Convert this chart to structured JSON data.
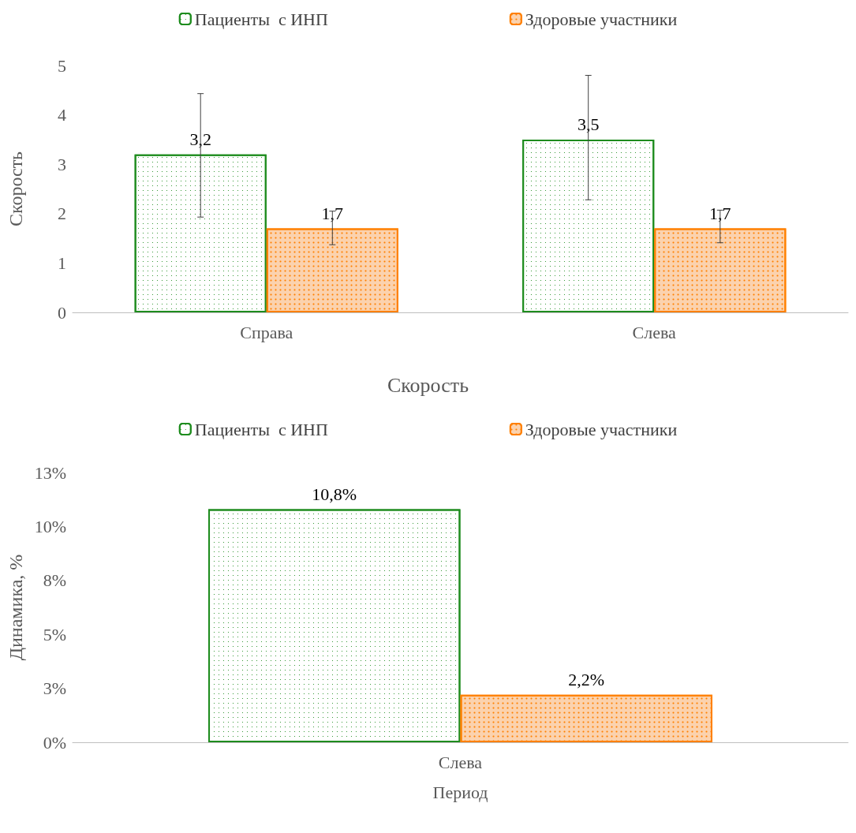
{
  "chart_data": [
    {
      "type": "bar",
      "ylabel": "Скорость",
      "categories": [
        "Справа",
        "Слева"
      ],
      "ylim": [
        0,
        5
      ],
      "yticks": [
        0,
        1,
        2,
        3,
        4,
        5
      ],
      "grid": false,
      "legend": "top",
      "series": [
        {
          "name": "Пациенты  с ИНП",
          "color": "#1e8c1e",
          "values": [
            3.2,
            3.5
          ],
          "value_labels": [
            "3,2",
            "3,5"
          ],
          "errors": [
            [
              1.93,
              4.43
            ],
            [
              2.28,
              4.8
            ]
          ]
        },
        {
          "name": "Здоровые участники",
          "color": "#ff8000",
          "values": [
            1.7,
            1.7
          ],
          "value_labels": [
            "1,7",
            "1,7"
          ],
          "errors": [
            [
              1.37,
              2.05
            ],
            [
              1.41,
              2.07
            ]
          ]
        }
      ]
    },
    {
      "type": "bar",
      "title": "Скорость",
      "ylabel": "Динамика, %",
      "xlabel": "Период",
      "categories": [
        "Слева"
      ],
      "ylim": [
        0,
        12.5
      ],
      "yticks": [
        {
          "value": 0,
          "label": "0%"
        },
        {
          "value": 2.5,
          "label": "3%"
        },
        {
          "value": 5,
          "label": "5%"
        },
        {
          "value": 7.5,
          "label": "8%"
        },
        {
          "value": 10,
          "label": "10%"
        },
        {
          "value": 12.5,
          "label": "13%"
        }
      ],
      "grid": false,
      "legend": "top",
      "series": [
        {
          "name": "Пациенты  с ИНП",
          "color": "#1e8c1e",
          "values": [
            10.8
          ],
          "value_labels": [
            "10,8%"
          ]
        },
        {
          "name": "Здоровые участники",
          "color": "#ff8000",
          "values": [
            2.2
          ],
          "value_labels": [
            "2,2%"
          ]
        }
      ]
    }
  ]
}
